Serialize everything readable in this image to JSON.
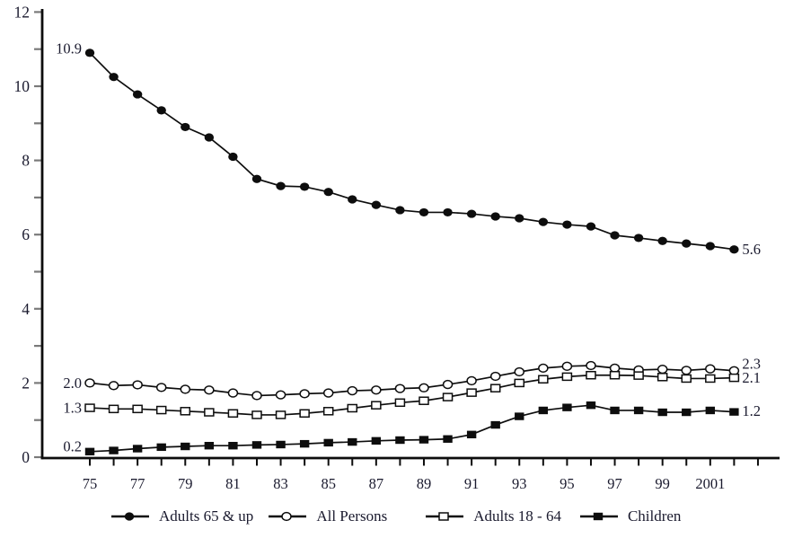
{
  "chart_data": {
    "type": "line",
    "title": "",
    "xlabel": "",
    "ylabel": "",
    "grid": false,
    "legend_position": "bottom",
    "x_years": [
      1975,
      1976,
      1977,
      1978,
      1979,
      1980,
      1981,
      1982,
      1983,
      1984,
      1985,
      1986,
      1987,
      1988,
      1989,
      1990,
      1991,
      1992,
      1993,
      1994,
      1995,
      1996,
      1997,
      1998,
      1999,
      2000,
      2001,
      2002
    ],
    "x_axis": {
      "tick_start": 1975,
      "tick_end": 2003,
      "labels": [
        {
          "year": 1975,
          "text": "75"
        },
        {
          "year": 1977,
          "text": "77"
        },
        {
          "year": 1979,
          "text": "79"
        },
        {
          "year": 1981,
          "text": "81"
        },
        {
          "year": 1983,
          "text": "83"
        },
        {
          "year": 1985,
          "text": "85"
        },
        {
          "year": 1987,
          "text": "87"
        },
        {
          "year": 1989,
          "text": "89"
        },
        {
          "year": 1991,
          "text": "91"
        },
        {
          "year": 1993,
          "text": "93"
        },
        {
          "year": 1995,
          "text": "95"
        },
        {
          "year": 1997,
          "text": "97"
        },
        {
          "year": 1999,
          "text": "99"
        },
        {
          "year": 2001,
          "text": "2001"
        }
      ]
    },
    "y_axis": {
      "min": 0,
      "max": 12,
      "major_ticks": [
        0,
        2,
        4,
        6,
        8,
        10,
        12
      ],
      "minor_ticks": [
        1,
        3,
        5,
        7,
        9,
        11
      ],
      "major_labels": [
        "0",
        "2",
        "4",
        "6",
        "8",
        "10",
        "12"
      ]
    },
    "series": [
      {
        "name": "Adults 65 & up",
        "marker": "filled-circle",
        "start_label": "10.9",
        "end_label": "5.6",
        "values": [
          10.9,
          10.25,
          9.78,
          9.35,
          8.9,
          8.62,
          8.1,
          7.5,
          7.31,
          7.29,
          7.15,
          6.95,
          6.8,
          6.66,
          6.6,
          6.6,
          6.56,
          6.49,
          6.44,
          6.34,
          6.27,
          6.22,
          5.98,
          5.91,
          5.83,
          5.76,
          5.69,
          5.6
        ]
      },
      {
        "name": "All Persons",
        "marker": "open-circle",
        "start_label": "2.0",
        "end_label": "2.3",
        "values": [
          2.0,
          1.93,
          1.95,
          1.88,
          1.83,
          1.81,
          1.73,
          1.66,
          1.68,
          1.71,
          1.73,
          1.79,
          1.81,
          1.85,
          1.87,
          1.96,
          2.06,
          2.18,
          2.3,
          2.4,
          2.45,
          2.47,
          2.4,
          2.35,
          2.37,
          2.34,
          2.38,
          2.33
        ]
      },
      {
        "name": "Adults 18 - 64",
        "marker": "open-square",
        "start_label": "1.3",
        "end_label": "2.1",
        "values": [
          1.33,
          1.3,
          1.3,
          1.27,
          1.24,
          1.21,
          1.18,
          1.14,
          1.14,
          1.18,
          1.24,
          1.32,
          1.4,
          1.47,
          1.52,
          1.62,
          1.74,
          1.86,
          2.0,
          2.1,
          2.17,
          2.21,
          2.21,
          2.2,
          2.16,
          2.12,
          2.12,
          2.14
        ]
      },
      {
        "name": "Children",
        "marker": "filled-square",
        "start_label": "0.2",
        "end_label": "1.2",
        "values": [
          0.15,
          0.18,
          0.23,
          0.27,
          0.29,
          0.31,
          0.31,
          0.33,
          0.34,
          0.36,
          0.39,
          0.41,
          0.44,
          0.46,
          0.47,
          0.49,
          0.61,
          0.87,
          1.1,
          1.26,
          1.34,
          1.4,
          1.26,
          1.26,
          1.21,
          1.21,
          1.26,
          1.22
        ]
      }
    ]
  },
  "colors": {
    "series_line": "#0d0d0d",
    "axis": "#0d0d0d",
    "y_tick": "#7a7a7a",
    "text": "#1a1a2e",
    "background": "#ffffff"
  }
}
